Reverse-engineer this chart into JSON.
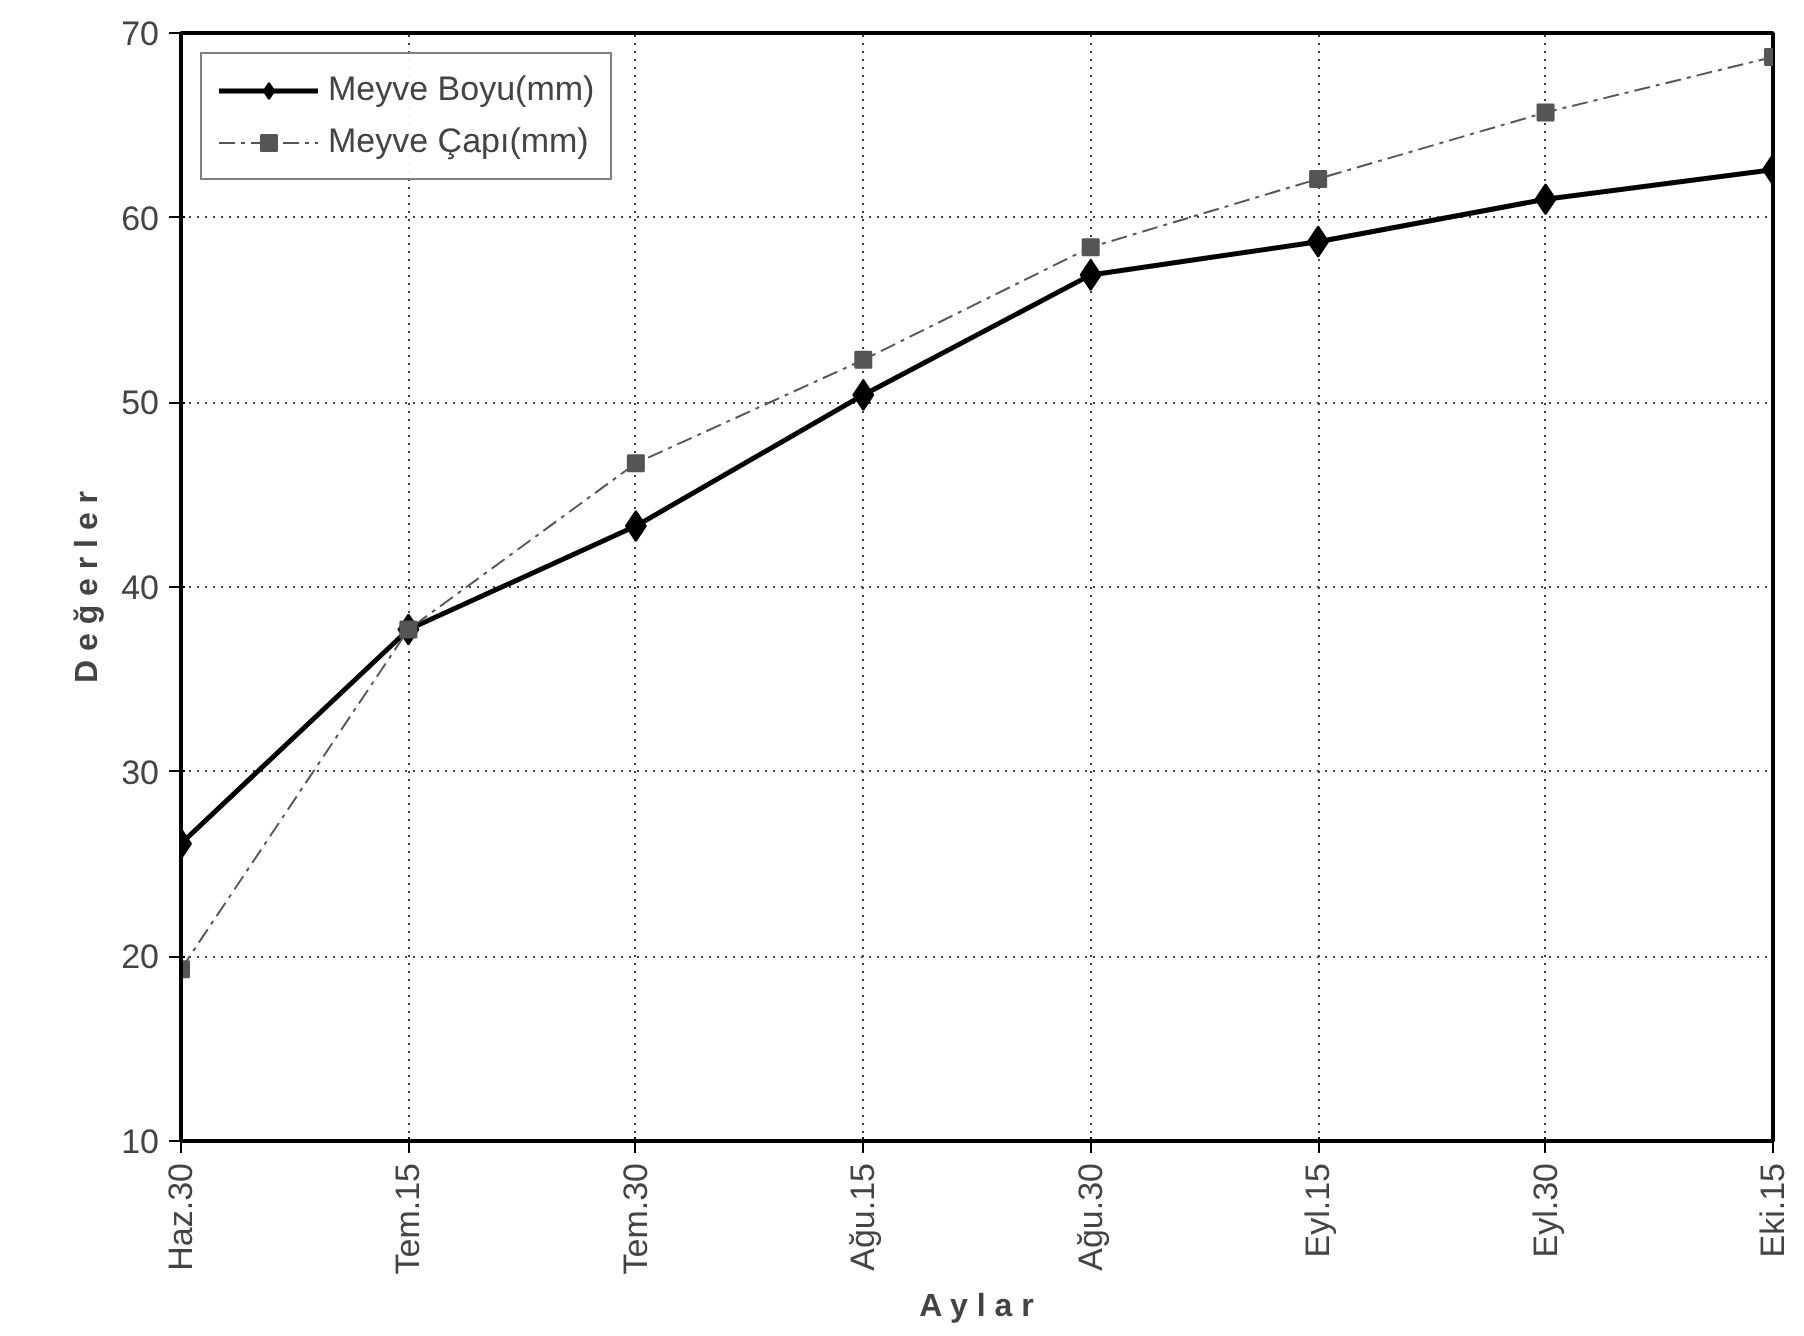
{
  "chart_data": {
    "type": "line",
    "xlabel": "A y l a r",
    "ylabel": "D e ğ e r l e r",
    "categories": [
      "Haz.30",
      "Tem.15",
      "Tem.30",
      "Ağu.15",
      "Ağu.30",
      "Eyl.15",
      "Eyl.30",
      "Eki.15"
    ],
    "series": [
      {
        "name": "Meyve Boyu(mm)",
        "color": "#000000",
        "marker": "diamond",
        "line_style": "solid",
        "values": [
          26.1,
          37.7,
          43.3,
          50.4,
          56.9,
          58.7,
          61.0,
          62.6
        ]
      },
      {
        "name": "Meyve Çapı(mm)",
        "color": "#555555",
        "marker": "square",
        "line_style": "dashed",
        "values": [
          19.3,
          37.7,
          46.7,
          52.3,
          58.4,
          62.1,
          65.7,
          68.7
        ]
      }
    ],
    "ylim": [
      10,
      70
    ],
    "yticks": [
      10,
      20,
      30,
      40,
      50,
      60,
      70
    ],
    "grid": true,
    "legend": "top left"
  }
}
